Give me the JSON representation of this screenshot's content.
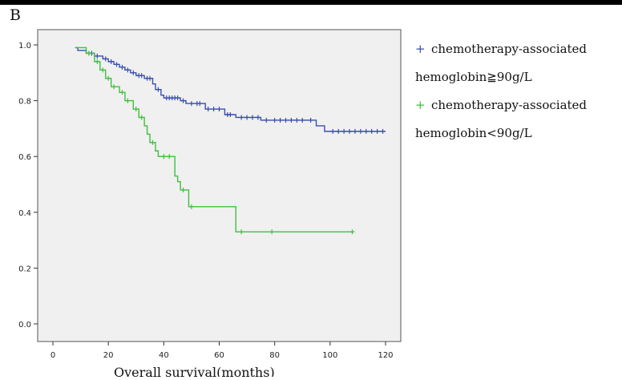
{
  "panel_label": "B",
  "legend": [
    {
      "marker": "+",
      "line1": "chemotherapy-associated",
      "line2": "hemoglobin≧90g/L",
      "color": "#3a4fae"
    },
    {
      "marker": "+",
      "line1": "chemotherapy-associated",
      "line2": "hemoglobin<90g/L",
      "color": "#3fbf3f"
    }
  ],
  "chart_data": {
    "type": "line",
    "title": "",
    "xlabel": "Overall survival(months)",
    "ylabel": "",
    "xlim": [
      0,
      120
    ],
    "ylim": [
      0,
      1.0
    ],
    "x_ticks": [
      0,
      20,
      40,
      60,
      80,
      100,
      120
    ],
    "y_ticks": [
      "0.0",
      "0.2",
      "0.4",
      "0.6",
      "0.8",
      "1.0"
    ],
    "background": "#f0f0f0",
    "grid": false,
    "legend_position": "right",
    "series": [
      {
        "name": "chemotherapy-associated hemoglobin≧90g/L",
        "color": "#3a4fae",
        "steps": [
          [
            8,
            0.99
          ],
          [
            9,
            0.98
          ],
          [
            12,
            0.97
          ],
          [
            15,
            0.96
          ],
          [
            18,
            0.95
          ],
          [
            20,
            0.94
          ],
          [
            22,
            0.93
          ],
          [
            24,
            0.92
          ],
          [
            26,
            0.91
          ],
          [
            28,
            0.9
          ],
          [
            30,
            0.89
          ],
          [
            33,
            0.88
          ],
          [
            36,
            0.86
          ],
          [
            37,
            0.84
          ],
          [
            39,
            0.82
          ],
          [
            40,
            0.81
          ],
          [
            46,
            0.8
          ],
          [
            48,
            0.79
          ],
          [
            55,
            0.77
          ],
          [
            62,
            0.75
          ],
          [
            66,
            0.74
          ],
          [
            75,
            0.73
          ],
          [
            95,
            0.71
          ],
          [
            98,
            0.69
          ]
        ],
        "end_x": 120,
        "censor_x": [
          13,
          14,
          16,
          19,
          21,
          23,
          25,
          27,
          29,
          31,
          32,
          34,
          35,
          38,
          41,
          42,
          43,
          44,
          45,
          47,
          50,
          52,
          53,
          56,
          58,
          60,
          63,
          64,
          68,
          70,
          72,
          74,
          77,
          80,
          82,
          84,
          86,
          88,
          90,
          93,
          101,
          103,
          105,
          107,
          109,
          111,
          113,
          115,
          117,
          119
        ]
      },
      {
        "name": "chemotherapy-associated hemoglobin<90g/L",
        "color": "#3fbf3f",
        "steps": [
          [
            8,
            0.99
          ],
          [
            12,
            0.97
          ],
          [
            15,
            0.94
          ],
          [
            17,
            0.91
          ],
          [
            19,
            0.88
          ],
          [
            21,
            0.85
          ],
          [
            24,
            0.83
          ],
          [
            26,
            0.8
          ],
          [
            29,
            0.77
          ],
          [
            31,
            0.74
          ],
          [
            33,
            0.71
          ],
          [
            34,
            0.68
          ],
          [
            35,
            0.65
          ],
          [
            37,
            0.62
          ],
          [
            38,
            0.6
          ],
          [
            44,
            0.53
          ],
          [
            45,
            0.51
          ],
          [
            46,
            0.48
          ],
          [
            49,
            0.42
          ],
          [
            52,
            0.42
          ],
          [
            66,
            0.33
          ]
        ],
        "end_x": 108,
        "censor_x": [
          13,
          16,
          18,
          20,
          22,
          25,
          27,
          30,
          32,
          36,
          40,
          42,
          47,
          50,
          68,
          79,
          108
        ]
      }
    ]
  }
}
